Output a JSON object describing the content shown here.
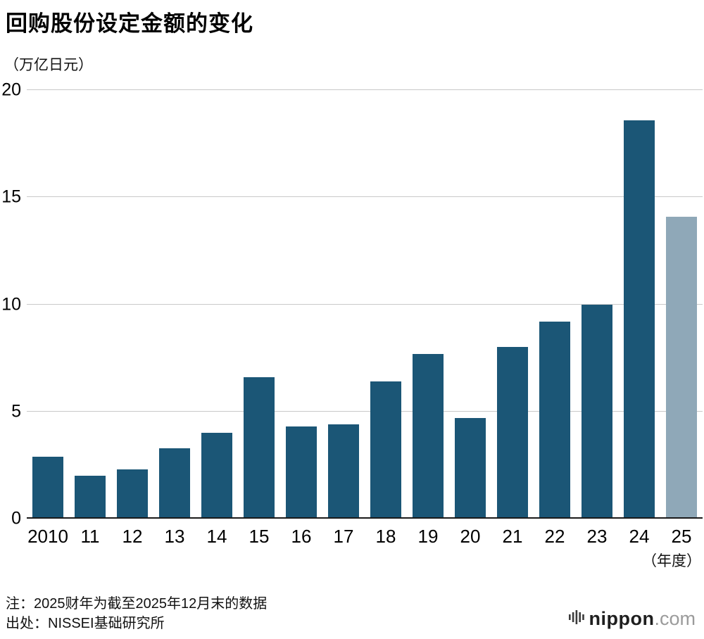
{
  "header": {
    "title": "回购股份设定金额的变化",
    "unit_label": "（万亿日元）"
  },
  "footer": {
    "note_line1": "注：2025财年为截至2025年12月末的数据",
    "note_line2": "出处：NISSEI基础研究所",
    "logo_name": "nippon",
    "logo_suffix": ".com"
  },
  "colors": {
    "bar": "#1b5676",
    "bar_highlight": "#8fa8b8",
    "grid": "#c9c9c9",
    "baseline": "#1a1a1a"
  },
  "chart_data": {
    "type": "bar",
    "title": "回购股份设定金额的变化",
    "ylabel": "（万亿日元）",
    "xlabel": "（年度）",
    "categories": [
      "2010",
      "11",
      "12",
      "13",
      "14",
      "15",
      "16",
      "17",
      "18",
      "19",
      "20",
      "21",
      "22",
      "23",
      "24",
      "25"
    ],
    "values": [
      2.9,
      2.0,
      2.3,
      3.3,
      4.0,
      6.6,
      4.3,
      4.4,
      6.4,
      7.7,
      4.7,
      8.0,
      9.2,
      10.0,
      18.6,
      14.1
    ],
    "highlight_index": 15,
    "ylim": [
      0,
      20
    ],
    "yticks": [
      0,
      5,
      10,
      15,
      20
    ],
    "grid": true,
    "legend_position": "none"
  }
}
